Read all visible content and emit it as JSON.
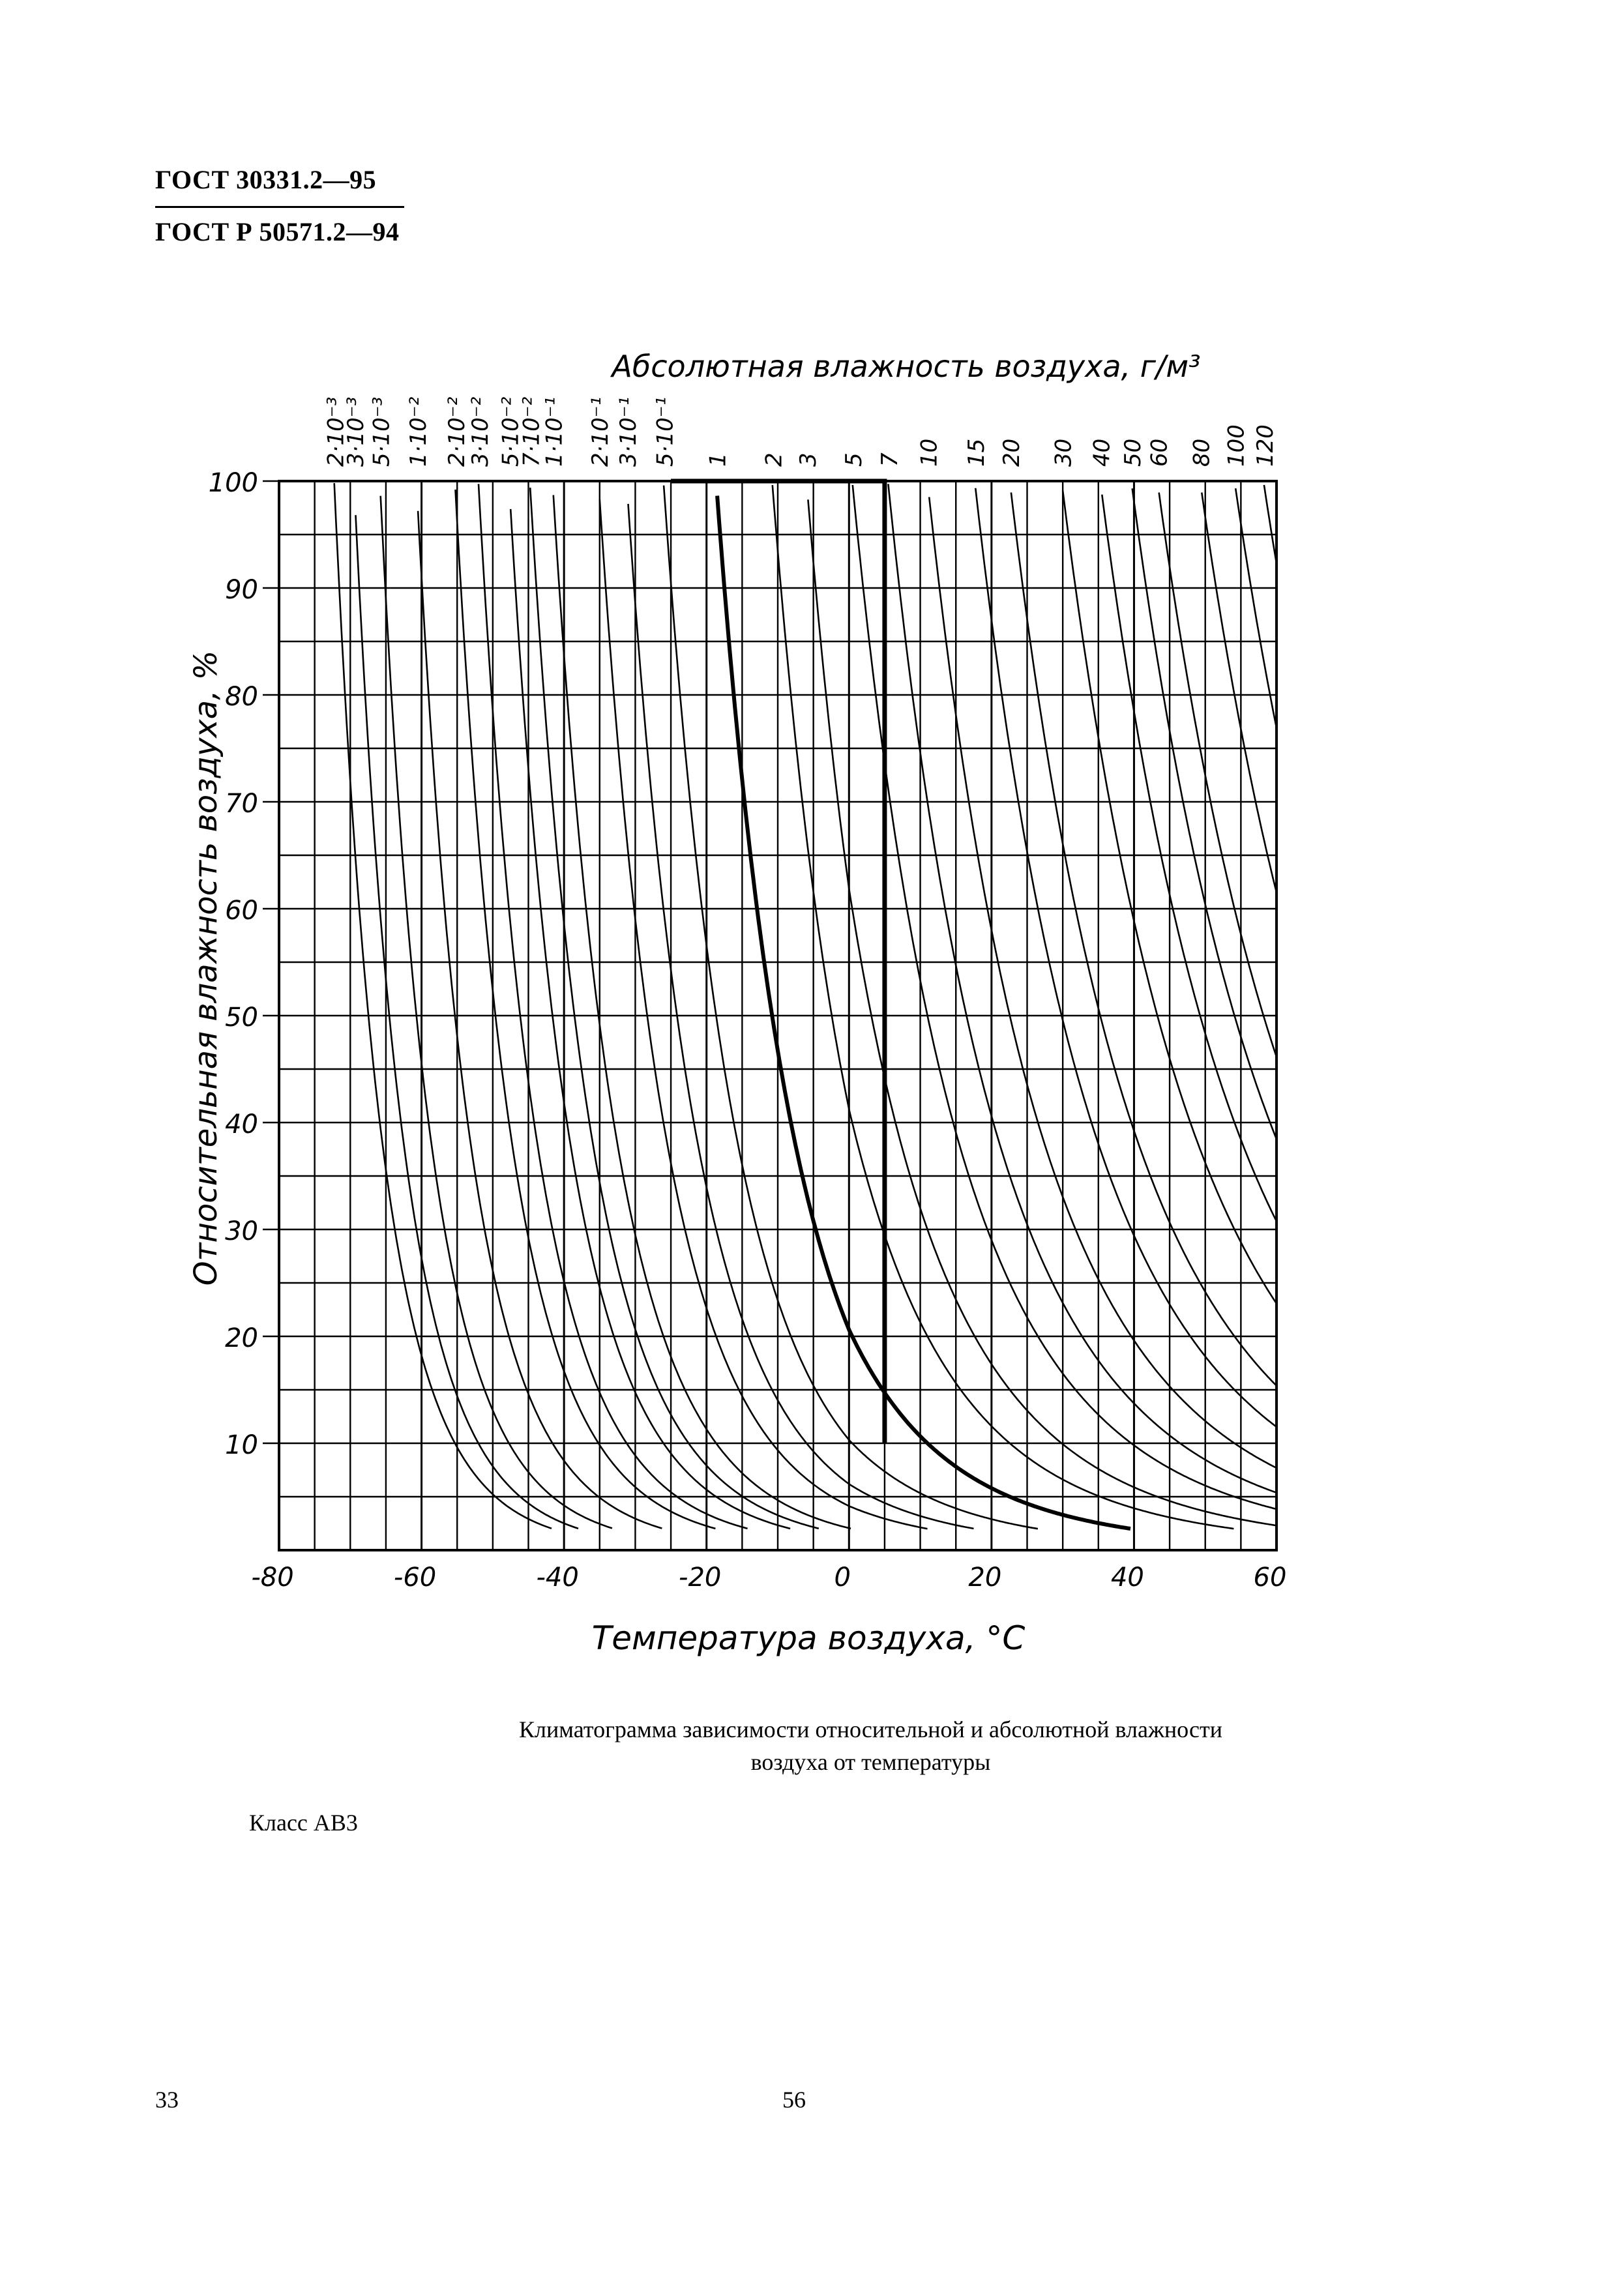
{
  "header": {
    "standard_1": "ГОСТ 30331.2—95",
    "standard_2": "ГОСТ Р 50571.2—94"
  },
  "chart_data": {
    "type": "line",
    "title": "Абсолютная влажность воздуха, г/м³",
    "xlabel": "Температура воздуха, °С",
    "ylabel": "Относительная влажность воздуха, %",
    "xlim": [
      -80,
      60
    ],
    "ylim": [
      0,
      100
    ],
    "x_ticks": [
      "-80",
      "-60",
      "-40",
      "-20",
      "0",
      "20",
      "40",
      "60"
    ],
    "y_ticks": [
      "10",
      "20",
      "30",
      "40",
      "50",
      "60",
      "70",
      "80",
      "90",
      "100"
    ],
    "grid": true,
    "curves_abs_humidity_g_m3": [
      {
        "label": "2·10⁻³",
        "value": 0.002
      },
      {
        "label": "3·10⁻³",
        "value": 0.003
      },
      {
        "label": "5·10⁻³",
        "value": 0.005
      },
      {
        "label": "1·10⁻²",
        "value": 0.01
      },
      {
        "label": "2·10⁻²",
        "value": 0.02
      },
      {
        "label": "3·10⁻²",
        "value": 0.03
      },
      {
        "label": "5·10⁻²",
        "value": 0.05
      },
      {
        "label": "7·10⁻²",
        "value": 0.07
      },
      {
        "label": "1·10⁻¹",
        "value": 0.1
      },
      {
        "label": "2·10⁻¹",
        "value": 0.2
      },
      {
        "label": "3·10⁻¹",
        "value": 0.3
      },
      {
        "label": "5·10⁻¹",
        "value": 0.5
      },
      {
        "label": "1",
        "value": 1
      },
      {
        "label": "2",
        "value": 2
      },
      {
        "label": "3",
        "value": 3
      },
      {
        "label": "5",
        "value": 5
      },
      {
        "label": "7",
        "value": 7
      },
      {
        "label": "10",
        "value": 10
      },
      {
        "label": "15",
        "value": 15
      },
      {
        "label": "20",
        "value": 20
      },
      {
        "label": "30",
        "value": 30
      },
      {
        "label": "40",
        "value": 40
      },
      {
        "label": "50",
        "value": 50
      },
      {
        "label": "60",
        "value": 60
      },
      {
        "label": "80",
        "value": 80
      },
      {
        "label": "100",
        "value": 100
      },
      {
        "label": "120",
        "value": 120
      }
    ],
    "class_region": {
      "description_points": [
        {
          "t": -25,
          "rh": 100
        },
        {
          "t": 5,
          "rh": 100
        },
        {
          "t": 5,
          "rh": 10
        }
      ],
      "boundary_abs_humidity": 1,
      "lower_abs_humidity": 7
    }
  },
  "caption": {
    "line1": "Климатограмма зависимости относительной и абсолютной влажности",
    "line2": "воздуха от температуры"
  },
  "class_label": "Класс АВ3",
  "footer": {
    "page_left": "33",
    "page_center": "56"
  }
}
